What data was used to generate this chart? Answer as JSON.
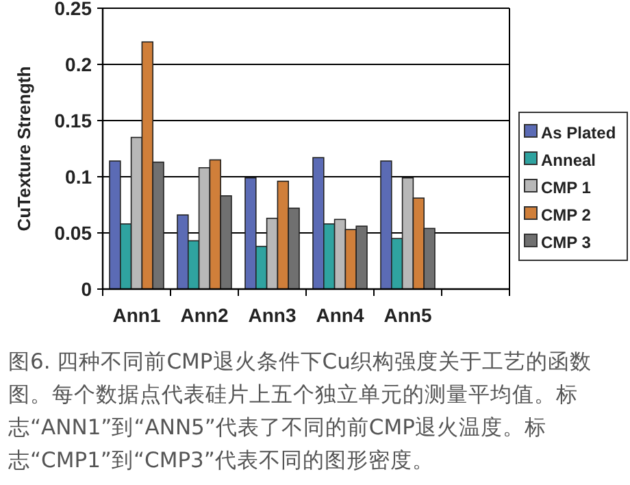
{
  "chart_data": {
    "type": "bar",
    "ylabel": "CuTexture Strength",
    "categories": [
      "Ann1",
      "Ann2",
      "Ann3",
      "Ann4",
      "Ann5",
      null
    ],
    "series": [
      {
        "name": "As Plated",
        "color": "#5b6bb5",
        "values": [
          0.114,
          0.066,
          0.099,
          0.117,
          0.114,
          null
        ]
      },
      {
        "name": "Anneal",
        "color": "#2fa3a0",
        "values": [
          0.058,
          0.043,
          0.038,
          0.058,
          0.045,
          null
        ]
      },
      {
        "name": "CMP 1",
        "color": "#b8b8b8",
        "values": [
          0.135,
          0.108,
          0.063,
          0.062,
          0.099,
          null
        ]
      },
      {
        "name": "CMP 2",
        "color": "#d07f3a",
        "values": [
          0.22,
          0.115,
          0.096,
          0.053,
          0.081,
          null
        ]
      },
      {
        "name": "CMP 3",
        "color": "#707070",
        "values": [
          0.113,
          0.083,
          0.072,
          0.056,
          0.054,
          null
        ]
      }
    ],
    "ylim": [
      0,
      0.25
    ],
    "yticks": [
      0,
      0.05,
      0.1,
      0.15,
      0.2,
      0.25
    ],
    "grid": "y",
    "legend": "right",
    "annotations": [
      "图6. 四种不同前CMP退火条件下Cu织构强度关于工艺的函数图。每个数据点代表硅片上五个独立单元的测量平均值。标志“ANN1”到“ANN5”代表了不同的前CMP退火温度。标志“CMP1”到“CMP3”代表不同的图形密度。"
    ]
  }
}
